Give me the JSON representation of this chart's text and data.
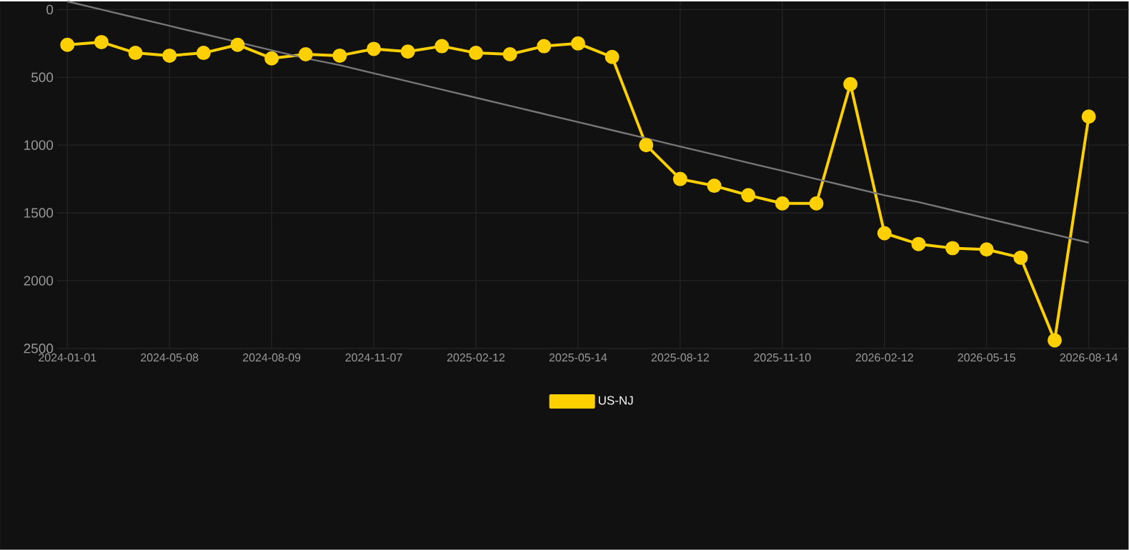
{
  "chart_data": {
    "type": "line",
    "categories": [
      "2024-01-01",
      null,
      null,
      "2024-05-08",
      null,
      null,
      "2024-08-09",
      null,
      null,
      "2024-11-07",
      null,
      null,
      "2025-02-12",
      null,
      null,
      "2025-05-14",
      null,
      null,
      "2025-08-12",
      null,
      null,
      "2025-11-10",
      null,
      null,
      "2026-02-12",
      null,
      null,
      "2026-05-15",
      null,
      null,
      "2026-08-14"
    ],
    "series": [
      {
        "name": "US-NJ",
        "color": "#ffd000",
        "marker": "circle",
        "values": [
          260,
          240,
          320,
          340,
          320,
          260,
          360,
          330,
          340,
          290,
          310,
          270,
          320,
          330,
          270,
          250,
          350,
          1000,
          1250,
          1300,
          1370,
          1430,
          1430,
          550,
          1650,
          1730,
          1760,
          1770,
          1830,
          2440,
          790
        ]
      },
      {
        "type": "line",
        "color": "#777777",
        "marker": "none",
        "values": [
          -60,
          0,
          60,
          120,
          180,
          240,
          300,
          360,
          410,
          470,
          530,
          590,
          650,
          710,
          770,
          830,
          890,
          950,
          1010,
          1070,
          1130,
          1190,
          1250,
          1310,
          1370,
          1420,
          1480,
          1540,
          1600,
          1660,
          1720
        ]
      }
    ],
    "ylim": [
      2500,
      -60
    ],
    "yticks": [
      0,
      500,
      1000,
      1500,
      2000,
      2500
    ],
    "grid": true,
    "legend": "bottom",
    "line_style": "solid"
  }
}
